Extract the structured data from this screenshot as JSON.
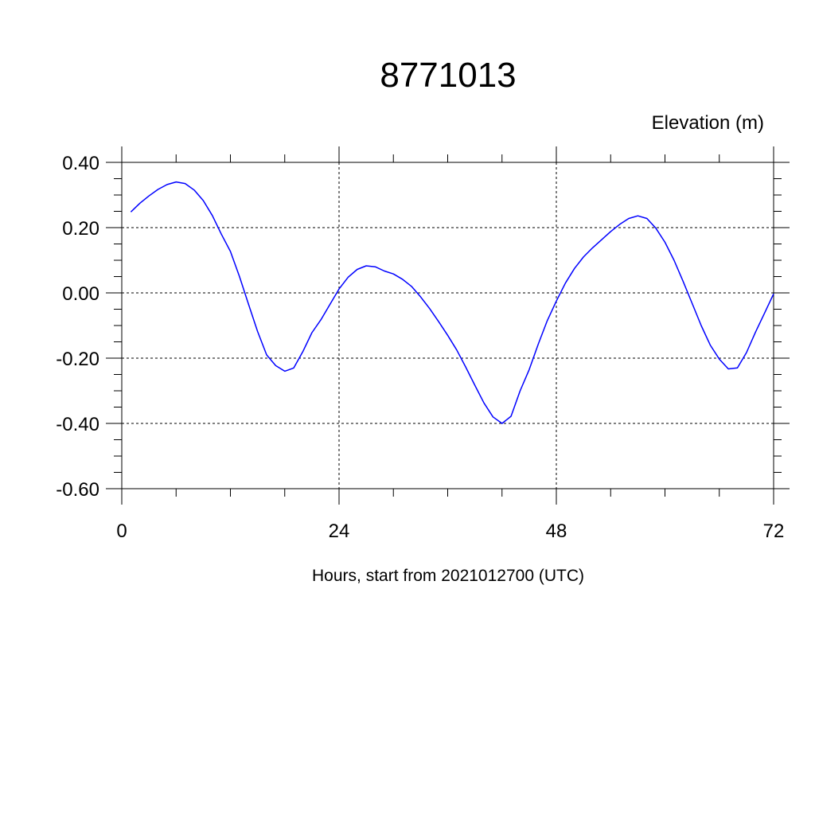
{
  "chart_data": {
    "type": "line",
    "title": "8771013",
    "ylabel": "Elevation (m)",
    "xlabel": "Hours, start from 2021012700 (UTC)",
    "xlim": [
      0,
      72
    ],
    "ylim": [
      -0.6,
      0.4
    ],
    "x_ticks": [
      0,
      24,
      48,
      72
    ],
    "x_tick_labels": [
      "0",
      "24",
      "48",
      "72"
    ],
    "y_ticks": [
      0.4,
      0.2,
      0.0,
      -0.2,
      -0.4,
      -0.6
    ],
    "y_tick_labels": [
      "0.40",
      "0.20",
      "0.00",
      "-0.20",
      "-0.40",
      "-0.60"
    ],
    "grid": true,
    "series": [
      {
        "color": "#0000ff",
        "x": [
          1,
          2,
          3,
          4,
          5,
          6,
          7,
          8,
          9,
          10,
          11,
          12,
          13,
          14,
          15,
          16,
          17,
          18,
          19,
          20,
          21,
          22,
          23,
          24,
          25,
          26,
          27,
          28,
          29,
          30,
          31,
          32,
          33,
          34,
          35,
          36,
          37,
          38,
          39,
          40,
          41,
          42,
          43,
          44,
          45,
          46,
          47,
          48,
          49,
          50,
          51,
          52,
          53,
          54,
          55,
          56,
          57,
          58,
          59,
          60,
          61,
          62,
          63,
          64,
          65,
          66,
          67,
          68,
          69,
          70,
          71,
          72
        ],
        "y": [
          0.248,
          0.275,
          0.297,
          0.317,
          0.332,
          0.34,
          0.335,
          0.315,
          0.283,
          0.237,
          0.18,
          0.127,
          0.05,
          -0.035,
          -0.118,
          -0.19,
          -0.223,
          -0.24,
          -0.23,
          -0.18,
          -0.122,
          -0.082,
          -0.035,
          0.012,
          0.048,
          0.072,
          0.083,
          0.08,
          0.067,
          0.058,
          0.042,
          0.02,
          -0.012,
          -0.048,
          -0.088,
          -0.13,
          -0.175,
          -0.228,
          -0.283,
          -0.337,
          -0.38,
          -0.4,
          -0.378,
          -0.3,
          -0.235,
          -0.157,
          -0.085,
          -0.025,
          0.03,
          0.075,
          0.11,
          0.138,
          0.163,
          0.188,
          0.21,
          0.228,
          0.236,
          0.228,
          0.198,
          0.155,
          0.1,
          0.035,
          -0.032,
          -0.1,
          -0.16,
          -0.203,
          -0.233,
          -0.23,
          -0.183,
          -0.12,
          -0.062,
          -0.003
        ]
      }
    ]
  }
}
